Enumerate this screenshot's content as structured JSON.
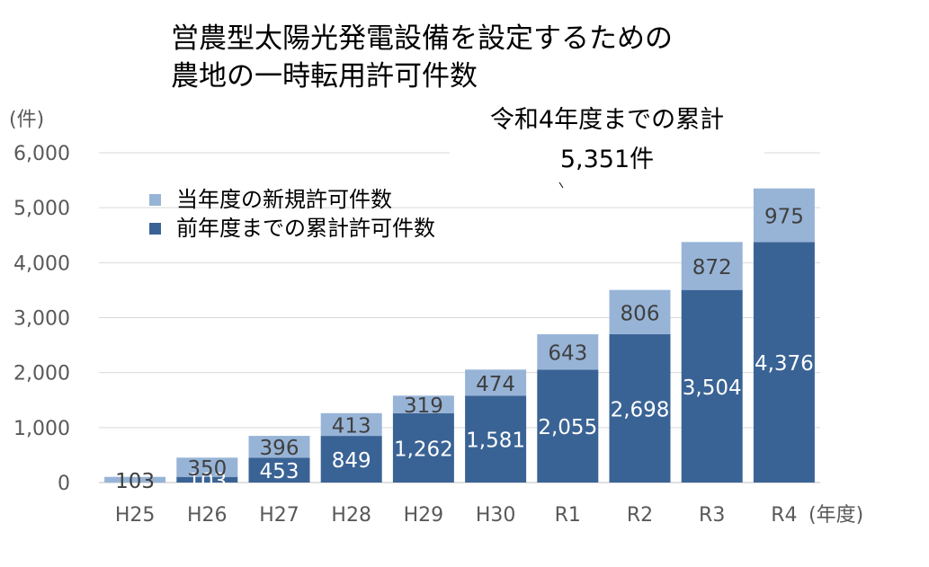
{
  "chart_data": {
    "type": "bar",
    "stacked": true,
    "title_lines": [
      "営農型太陽光発電設備を設定するための",
      "農地の一時転用許可件数"
    ],
    "y_unit": "(件)",
    "x_unit": "(年度)",
    "annotation_lines": [
      "令和4年度までの累計",
      "5,351件"
    ],
    "categories": [
      "H25",
      "H26",
      "H27",
      "H28",
      "H29",
      "H30",
      "R1",
      "R2",
      "R3",
      "R4"
    ],
    "series": [
      {
        "name": "前年度までの累計許可件数",
        "color": "#3a6395",
        "values": [
          0,
          103,
          453,
          849,
          1262,
          1581,
          2055,
          2698,
          3504,
          4376
        ],
        "labels": [
          "",
          "103",
          "453",
          "849",
          "1,262",
          "1,581",
          "2,055",
          "2,698",
          "3,504",
          "4,376"
        ]
      },
      {
        "name": "当年度の新規許可件数",
        "color": "#97b4d7",
        "values": [
          103,
          350,
          396,
          413,
          319,
          474,
          643,
          806,
          872,
          975
        ],
        "labels": [
          "103",
          "350",
          "396",
          "413",
          "319",
          "474",
          "643",
          "806",
          "872",
          "975"
        ]
      }
    ],
    "legend_order": [
      1,
      0
    ],
    "ylim": [
      0,
      6000
    ],
    "yticks": [
      0,
      1000,
      2000,
      3000,
      4000,
      5000,
      6000
    ],
    "ytick_labels": [
      "0",
      "1,000",
      "2,000",
      "3,000",
      "4,000",
      "5,000",
      "6,000"
    ],
    "grid": true,
    "legend_position": "top-left"
  }
}
